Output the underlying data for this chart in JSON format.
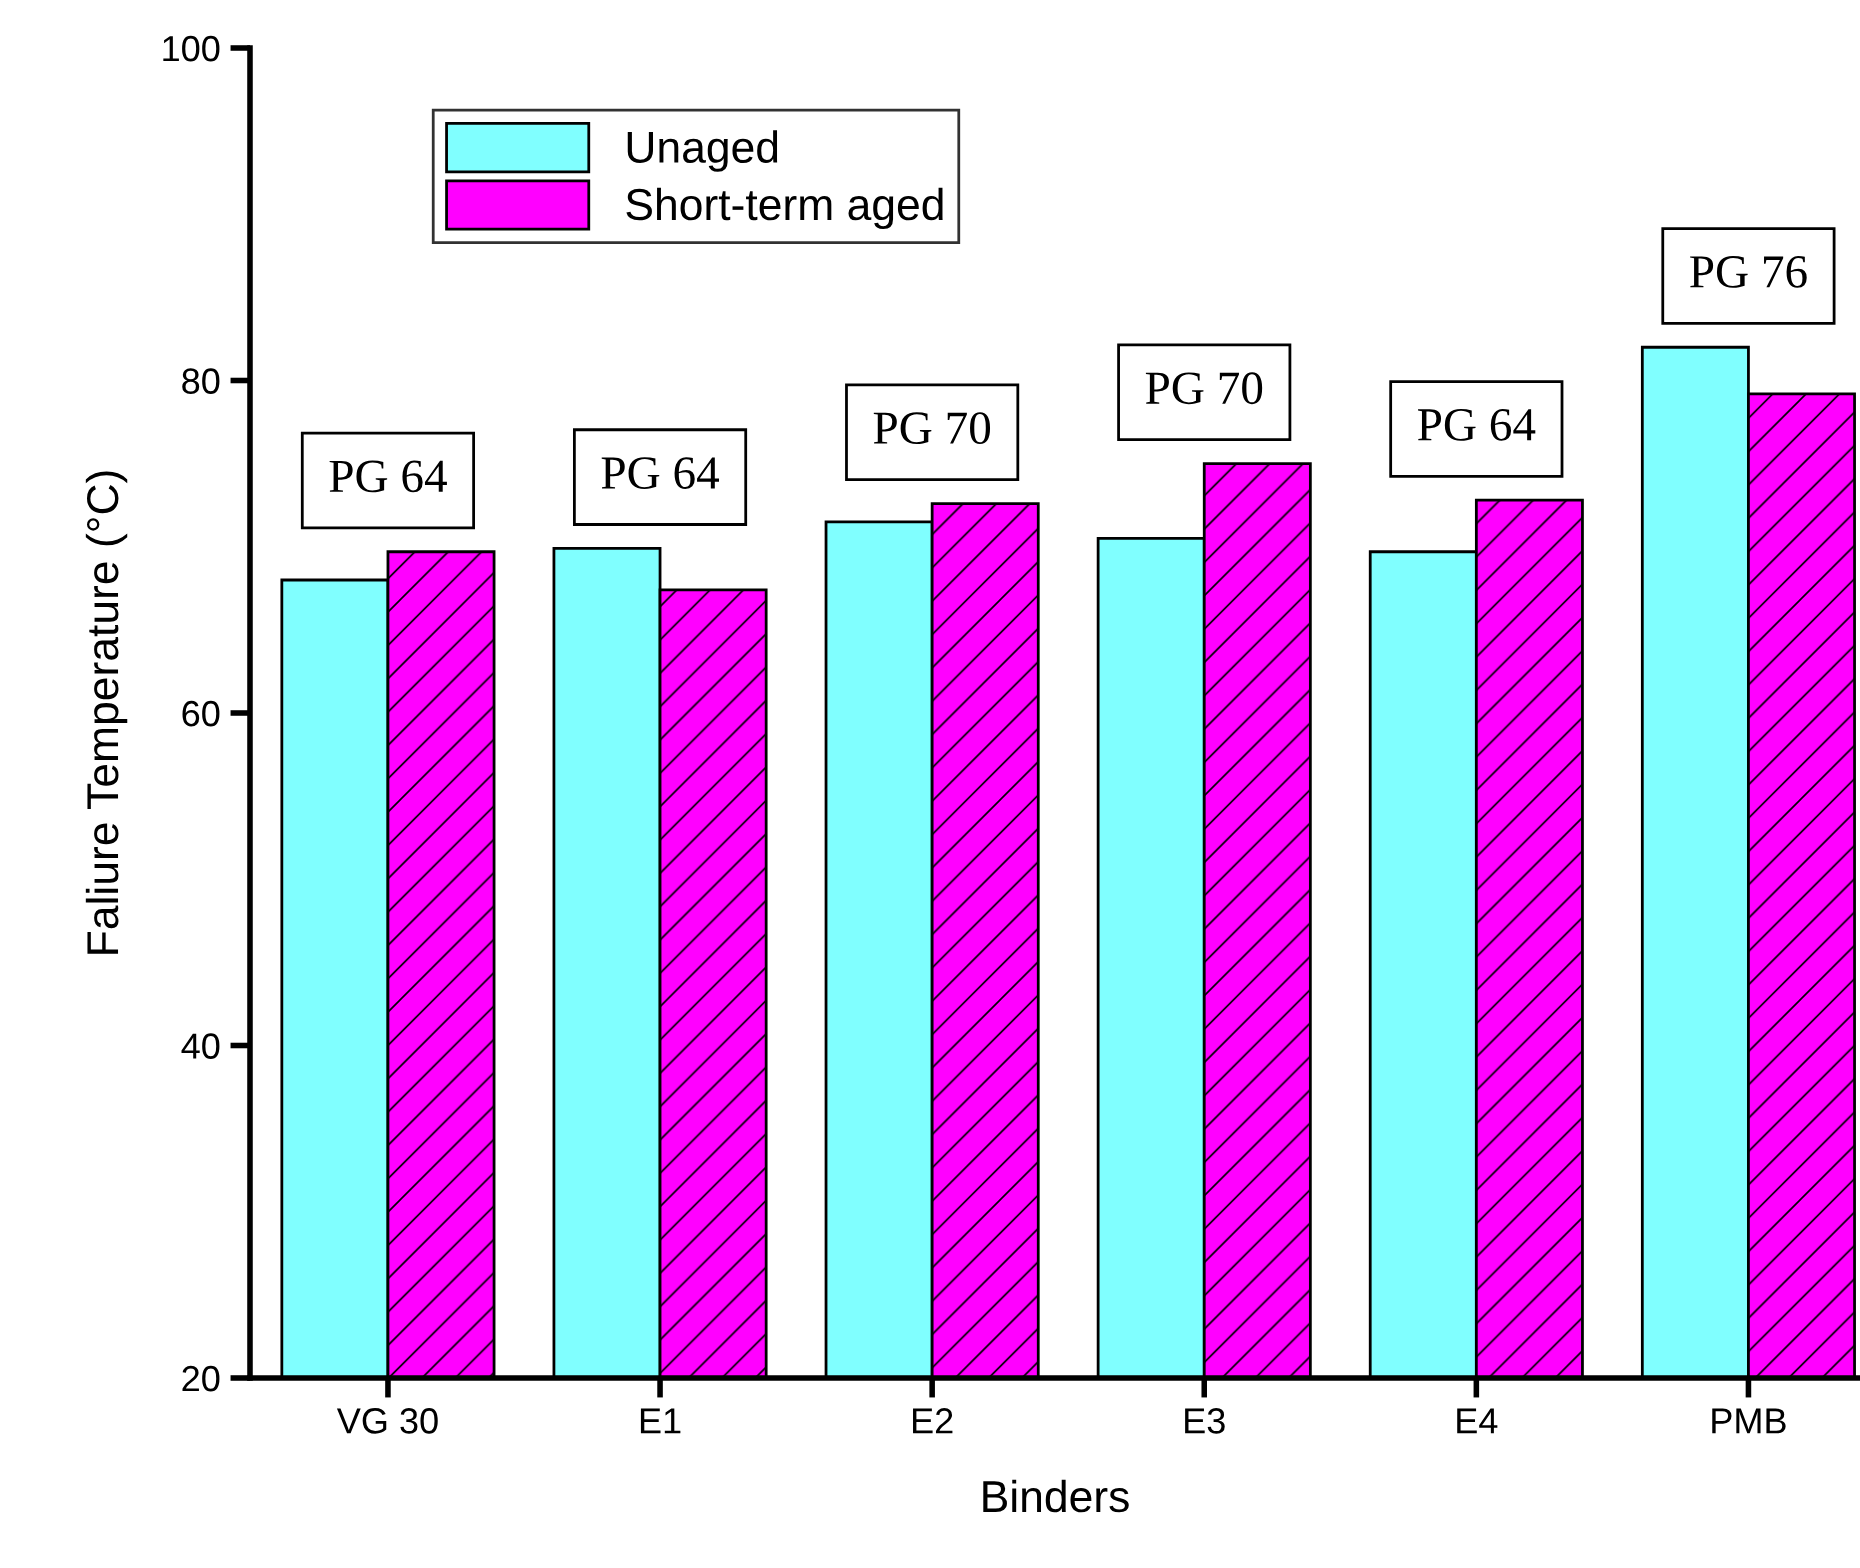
{
  "chart_data": {
    "type": "bar",
    "xlabel": "Binders",
    "ylabel": "Faliure Temperature (°C)",
    "categories": [
      "VG 30",
      "E1",
      "E2",
      "E3",
      "E4",
      "PMB"
    ],
    "series": [
      {
        "name": "Unaged",
        "color": "#80ffff",
        "values": [
          68.0,
          69.9,
          71.5,
          70.5,
          69.7,
          82.0
        ]
      },
      {
        "name": "Short-term aged",
        "color": "#ff00ff",
        "values": [
          69.7,
          67.4,
          72.6,
          75.0,
          72.8,
          79.2
        ]
      }
    ],
    "ylim": [
      20,
      100
    ],
    "yticks": [
      20,
      40,
      60,
      80,
      100
    ],
    "grid": false,
    "legend": "top left",
    "annotations": [
      "PG 64",
      "PG 64",
      "PG 70",
      "PG 70",
      "PG 64",
      "PG 76"
    ]
  }
}
